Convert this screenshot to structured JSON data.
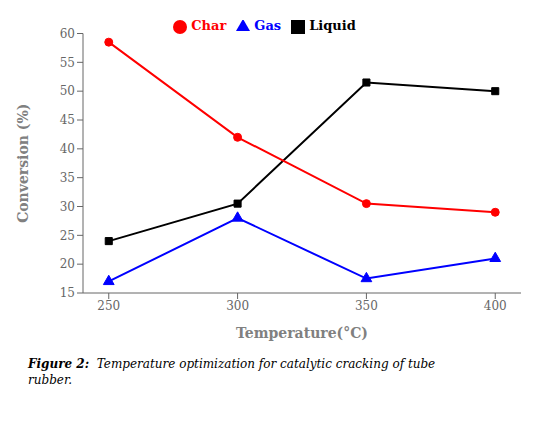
{
  "chart_data": {
    "type": "line",
    "xlabel": "Temperature(°C)",
    "ylabel": "Conversion (%)",
    "x": [
      250,
      300,
      350,
      400
    ],
    "series": [
      {
        "name": "Liquid",
        "color": "#000000",
        "marker": "square",
        "values": [
          24,
          30.5,
          51.5,
          50
        ]
      },
      {
        "name": "Char",
        "color": "#ff0000",
        "marker": "circle",
        "values": [
          58.5,
          42,
          30.5,
          29
        ]
      },
      {
        "name": "Gas",
        "color": "#0000ff",
        "marker": "triangle",
        "values": [
          17,
          28,
          17.5,
          21
        ]
      }
    ],
    "xlim": [
      240,
      410
    ],
    "ylim": [
      15,
      60
    ],
    "xticks": [
      250,
      300,
      350,
      400
    ],
    "yticks": [
      15,
      20,
      25,
      30,
      35,
      40,
      45,
      50,
      55,
      60
    ],
    "grid": false,
    "legend": "top",
    "annotations": [
      "Figure 2:",
      "  Temperature optimization for catalytic cracking of tube\nrubber."
    ]
  }
}
